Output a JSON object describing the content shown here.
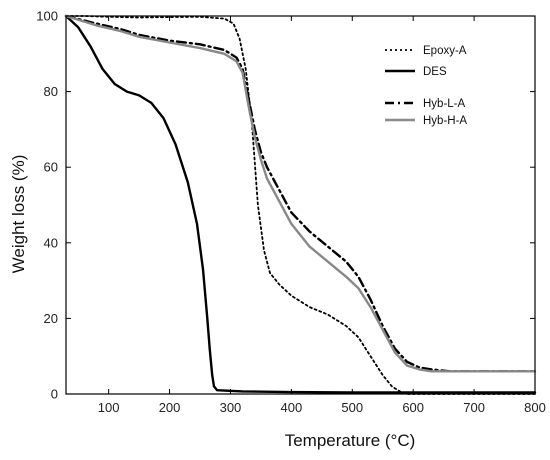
{
  "chart_data": {
    "type": "line",
    "xlabel": "Temperature (°C)",
    "ylabel": "Weight loss (%)",
    "xlim": [
      30,
      800
    ],
    "ylim": [
      0,
      100
    ],
    "xticks": [
      100,
      200,
      300,
      400,
      500,
      600,
      700,
      800
    ],
    "yticks": [
      0,
      20,
      40,
      60,
      80,
      100
    ],
    "grid": false,
    "legend_position": "top-right",
    "series": [
      {
        "name": "Epoxy-A",
        "style": "dotted",
        "color": "#000000",
        "x": [
          30,
          60,
          100,
          150,
          200,
          250,
          290,
          305,
          315,
          325,
          335,
          345,
          355,
          365,
          380,
          400,
          430,
          460,
          490,
          510,
          530,
          550,
          565,
          580,
          590,
          600,
          800
        ],
        "y": [
          100,
          100,
          99.8,
          99.6,
          99.7,
          99.8,
          99.3,
          98,
          94,
          86,
          72,
          50,
          38,
          32,
          29,
          26,
          23,
          21,
          18,
          15,
          10,
          5,
          2,
          0.5,
          0,
          0,
          0
        ]
      },
      {
        "name": "DES",
        "style": "solid",
        "color": "#000000",
        "x": [
          30,
          50,
          70,
          90,
          110,
          130,
          150,
          170,
          190,
          210,
          230,
          245,
          255,
          262,
          266,
          270,
          273,
          278,
          290,
          320,
          400,
          500,
          600,
          800
        ],
        "y": [
          100,
          97,
          92,
          86,
          82,
          80,
          79,
          77,
          73,
          66,
          56,
          45,
          33,
          20,
          12,
          5,
          2,
          1,
          0.9,
          0.7,
          0.5,
          0.4,
          0.4,
          0.4
        ]
      },
      {
        "name": "Hyb-L-A",
        "style": "dashdot",
        "color": "#000000",
        "x": [
          30,
          80,
          120,
          150,
          200,
          250,
          290,
          310,
          320,
          330,
          340,
          350,
          360,
          380,
          400,
          430,
          460,
          490,
          510,
          530,
          550,
          570,
          590,
          610,
          630,
          660,
          700,
          800
        ],
        "y": [
          100,
          98,
          96.5,
          95,
          93.5,
          92.5,
          91,
          89,
          86,
          78,
          70,
          64,
          60,
          54,
          48,
          43,
          39,
          35,
          31,
          25,
          18,
          12,
          8.5,
          7,
          6.5,
          6,
          6,
          6
        ]
      },
      {
        "name": "Hyb-H-A",
        "style": "solid",
        "color": "#888888",
        "x": [
          30,
          80,
          120,
          150,
          200,
          250,
          290,
          310,
          320,
          330,
          340,
          350,
          360,
          380,
          400,
          430,
          460,
          490,
          510,
          530,
          550,
          570,
          590,
          610,
          630,
          660,
          700,
          800
        ],
        "y": [
          100,
          97.5,
          96,
          94.5,
          93,
          91.5,
          90,
          88,
          85,
          76,
          68,
          62,
          57,
          51,
          45,
          39,
          35,
          31,
          28,
          23,
          17,
          11,
          7.5,
          6.5,
          6,
          6,
          6,
          6
        ]
      }
    ]
  },
  "legend": {
    "entries": [
      "Epoxy-A",
      "DES",
      "Hyb-L-A",
      "Hyb-H-A"
    ]
  }
}
